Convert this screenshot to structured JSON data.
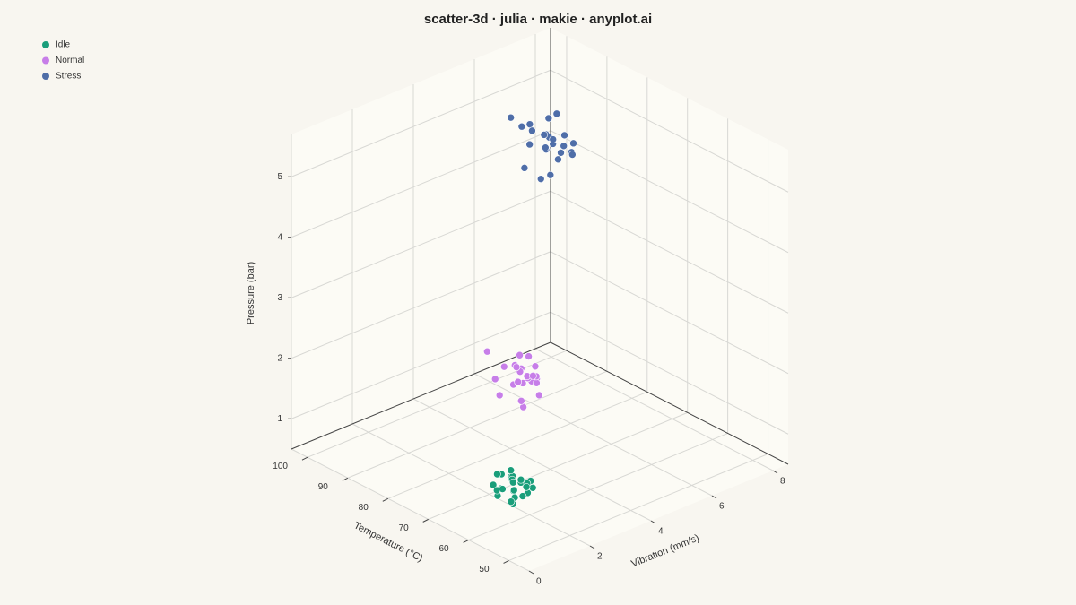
{
  "chart_data": {
    "type": "scatter3d",
    "title": "scatter-3d · julia · makie · anyplot.ai",
    "xlabel": "Temperature (°C)",
    "ylabel": "Vibration (mm/s)",
    "zlabel": "Pressure (bar)",
    "xlim": [
      45,
      104
    ],
    "ylim": [
      0,
      8.5
    ],
    "zlim": [
      0.5,
      5.7
    ],
    "xticks": [
      50,
      60,
      70,
      80,
      90,
      100
    ],
    "yticks": [
      0,
      2,
      4,
      6,
      8
    ],
    "zticks": [
      1,
      2,
      3,
      4,
      5
    ],
    "grid": true,
    "legend": "top-left",
    "series": [
      {
        "name": "Idle",
        "color": "#1a9e7a",
        "x": [
          57.2,
          60.1,
          55.8,
          58.9,
          61.3,
          54.6,
          59.4,
          56.7,
          62.0,
          58.1,
          53.9,
          57.8,
          60.7,
          55.2,
          59.9,
          56.3,
          58.6,
          61.8,
          54.9,
          57.5,
          60.3,
          56.1,
          58.4,
          59.1,
          55.5
        ],
        "y": [
          1.1,
          1.4,
          0.9,
          1.3,
          1.6,
          0.8,
          1.0,
          1.5,
          1.2,
          0.7,
          1.3,
          1.1,
          0.9,
          1.4,
          1.7,
          1.0,
          1.2,
          1.3,
          1.1,
          0.6,
          1.5,
          1.2,
          0.9,
          1.8,
          1.3
        ],
        "z": [
          1.18,
          1.25,
          1.05,
          1.32,
          1.12,
          1.22,
          1.4,
          1.08,
          1.27,
          1.15,
          1.3,
          0.98,
          1.2,
          1.35,
          1.1,
          1.24,
          1.45,
          1.02,
          1.17,
          1.28,
          1.13,
          1.38,
          1.21,
          1.09,
          1.26
        ]
      },
      {
        "name": "Normal",
        "color": "#c77ee8",
        "x": [
          68.5,
          72.3,
          66.1,
          70.8,
          74.2,
          65.4,
          71.6,
          69.2,
          73.5,
          67.3,
          70.1,
          75.0,
          64.8,
          71.9,
          68.0,
          72.8,
          66.7,
          69.7,
          73.1,
          70.4,
          67.8,
          71.2,
          65.9,
          74.6,
          69.0
        ],
        "y": [
          2.9,
          3.3,
          2.6,
          3.1,
          3.6,
          2.4,
          3.0,
          3.4,
          2.8,
          3.2,
          2.5,
          3.5,
          2.7,
          3.8,
          3.0,
          2.3,
          3.2,
          2.9,
          3.7,
          3.1,
          2.6,
          3.4,
          3.0,
          2.8,
          3.3
        ],
        "z": [
          2.2,
          2.45,
          1.95,
          2.3,
          2.1,
          2.6,
          2.05,
          2.35,
          1.85,
          2.25,
          2.5,
          2.15,
          2.4,
          1.9,
          2.28,
          2.7,
          2.0,
          2.18,
          2.32,
          1.8,
          2.55,
          2.12,
          2.38,
          2.08,
          2.22
        ]
      },
      {
        "name": "Stress",
        "color": "#4f6ea8",
        "x": [
          81.5,
          84.8,
          78.3,
          83.2,
          86.9,
          77.6,
          82.4,
          80.1,
          85.5,
          79.4,
          83.9,
          88.0,
          76.5,
          82.9,
          80.7,
          85.1,
          78.9,
          81.8,
          84.3,
          79.9,
          87.2,
          81.0,
          83.6,
          77.9,
          82.2
        ],
        "y": [
          5.4,
          5.9,
          5.1,
          5.6,
          6.2,
          4.8,
          5.5,
          5.8,
          5.2,
          6.0,
          4.9,
          5.7,
          5.3,
          6.4,
          5.5,
          4.7,
          5.9,
          5.4,
          6.1,
          5.0,
          5.6,
          5.8,
          5.2,
          5.3,
          5.7
        ],
        "z": [
          5.1,
          5.4,
          4.85,
          5.25,
          4.95,
          5.6,
          5.05,
          5.3,
          4.7,
          5.15,
          5.5,
          4.9,
          5.35,
          4.8,
          5.2,
          5.65,
          5.0,
          5.12,
          5.45,
          4.75,
          5.28,
          4.98,
          5.38,
          5.08,
          5.18
        ]
      }
    ]
  }
}
